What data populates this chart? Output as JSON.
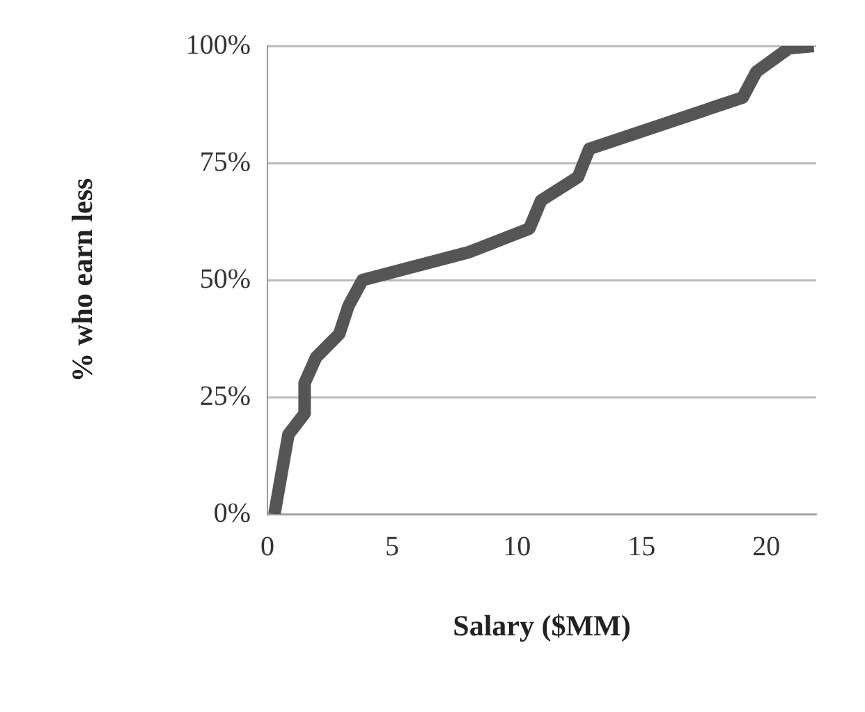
{
  "chart_data": {
    "type": "line",
    "xlabel": "Salary ($MM)",
    "ylabel": "% who earn less",
    "xlim": [
      0,
      22
    ],
    "xticks": [
      0,
      5,
      10,
      15,
      20
    ],
    "ylim": [
      0,
      100
    ],
    "yticks": [
      {
        "value": 0,
        "label": "0%"
      },
      {
        "value": 25,
        "label": "25%"
      },
      {
        "value": 50,
        "label": "50%"
      },
      {
        "value": 75,
        "label": "75%"
      },
      {
        "value": 100,
        "label": "100%"
      }
    ],
    "grid": "y",
    "legend": false,
    "marker": "none",
    "line_style": "solid",
    "series": [
      {
        "color": "#555555",
        "x": [
          0.28,
          0.84,
          1.49,
          1.49,
          1.95,
          2.88,
          3.25,
          3.81,
          8.1,
          10.5,
          10.97,
          12.45,
          12.9,
          19.05,
          19.6,
          20.9,
          21.9
        ],
        "values": [
          0,
          17,
          21.5,
          28,
          33.5,
          38.5,
          44.5,
          50,
          56,
          61,
          67,
          72,
          78,
          89,
          94.5,
          99.5,
          100
        ]
      }
    ]
  }
}
